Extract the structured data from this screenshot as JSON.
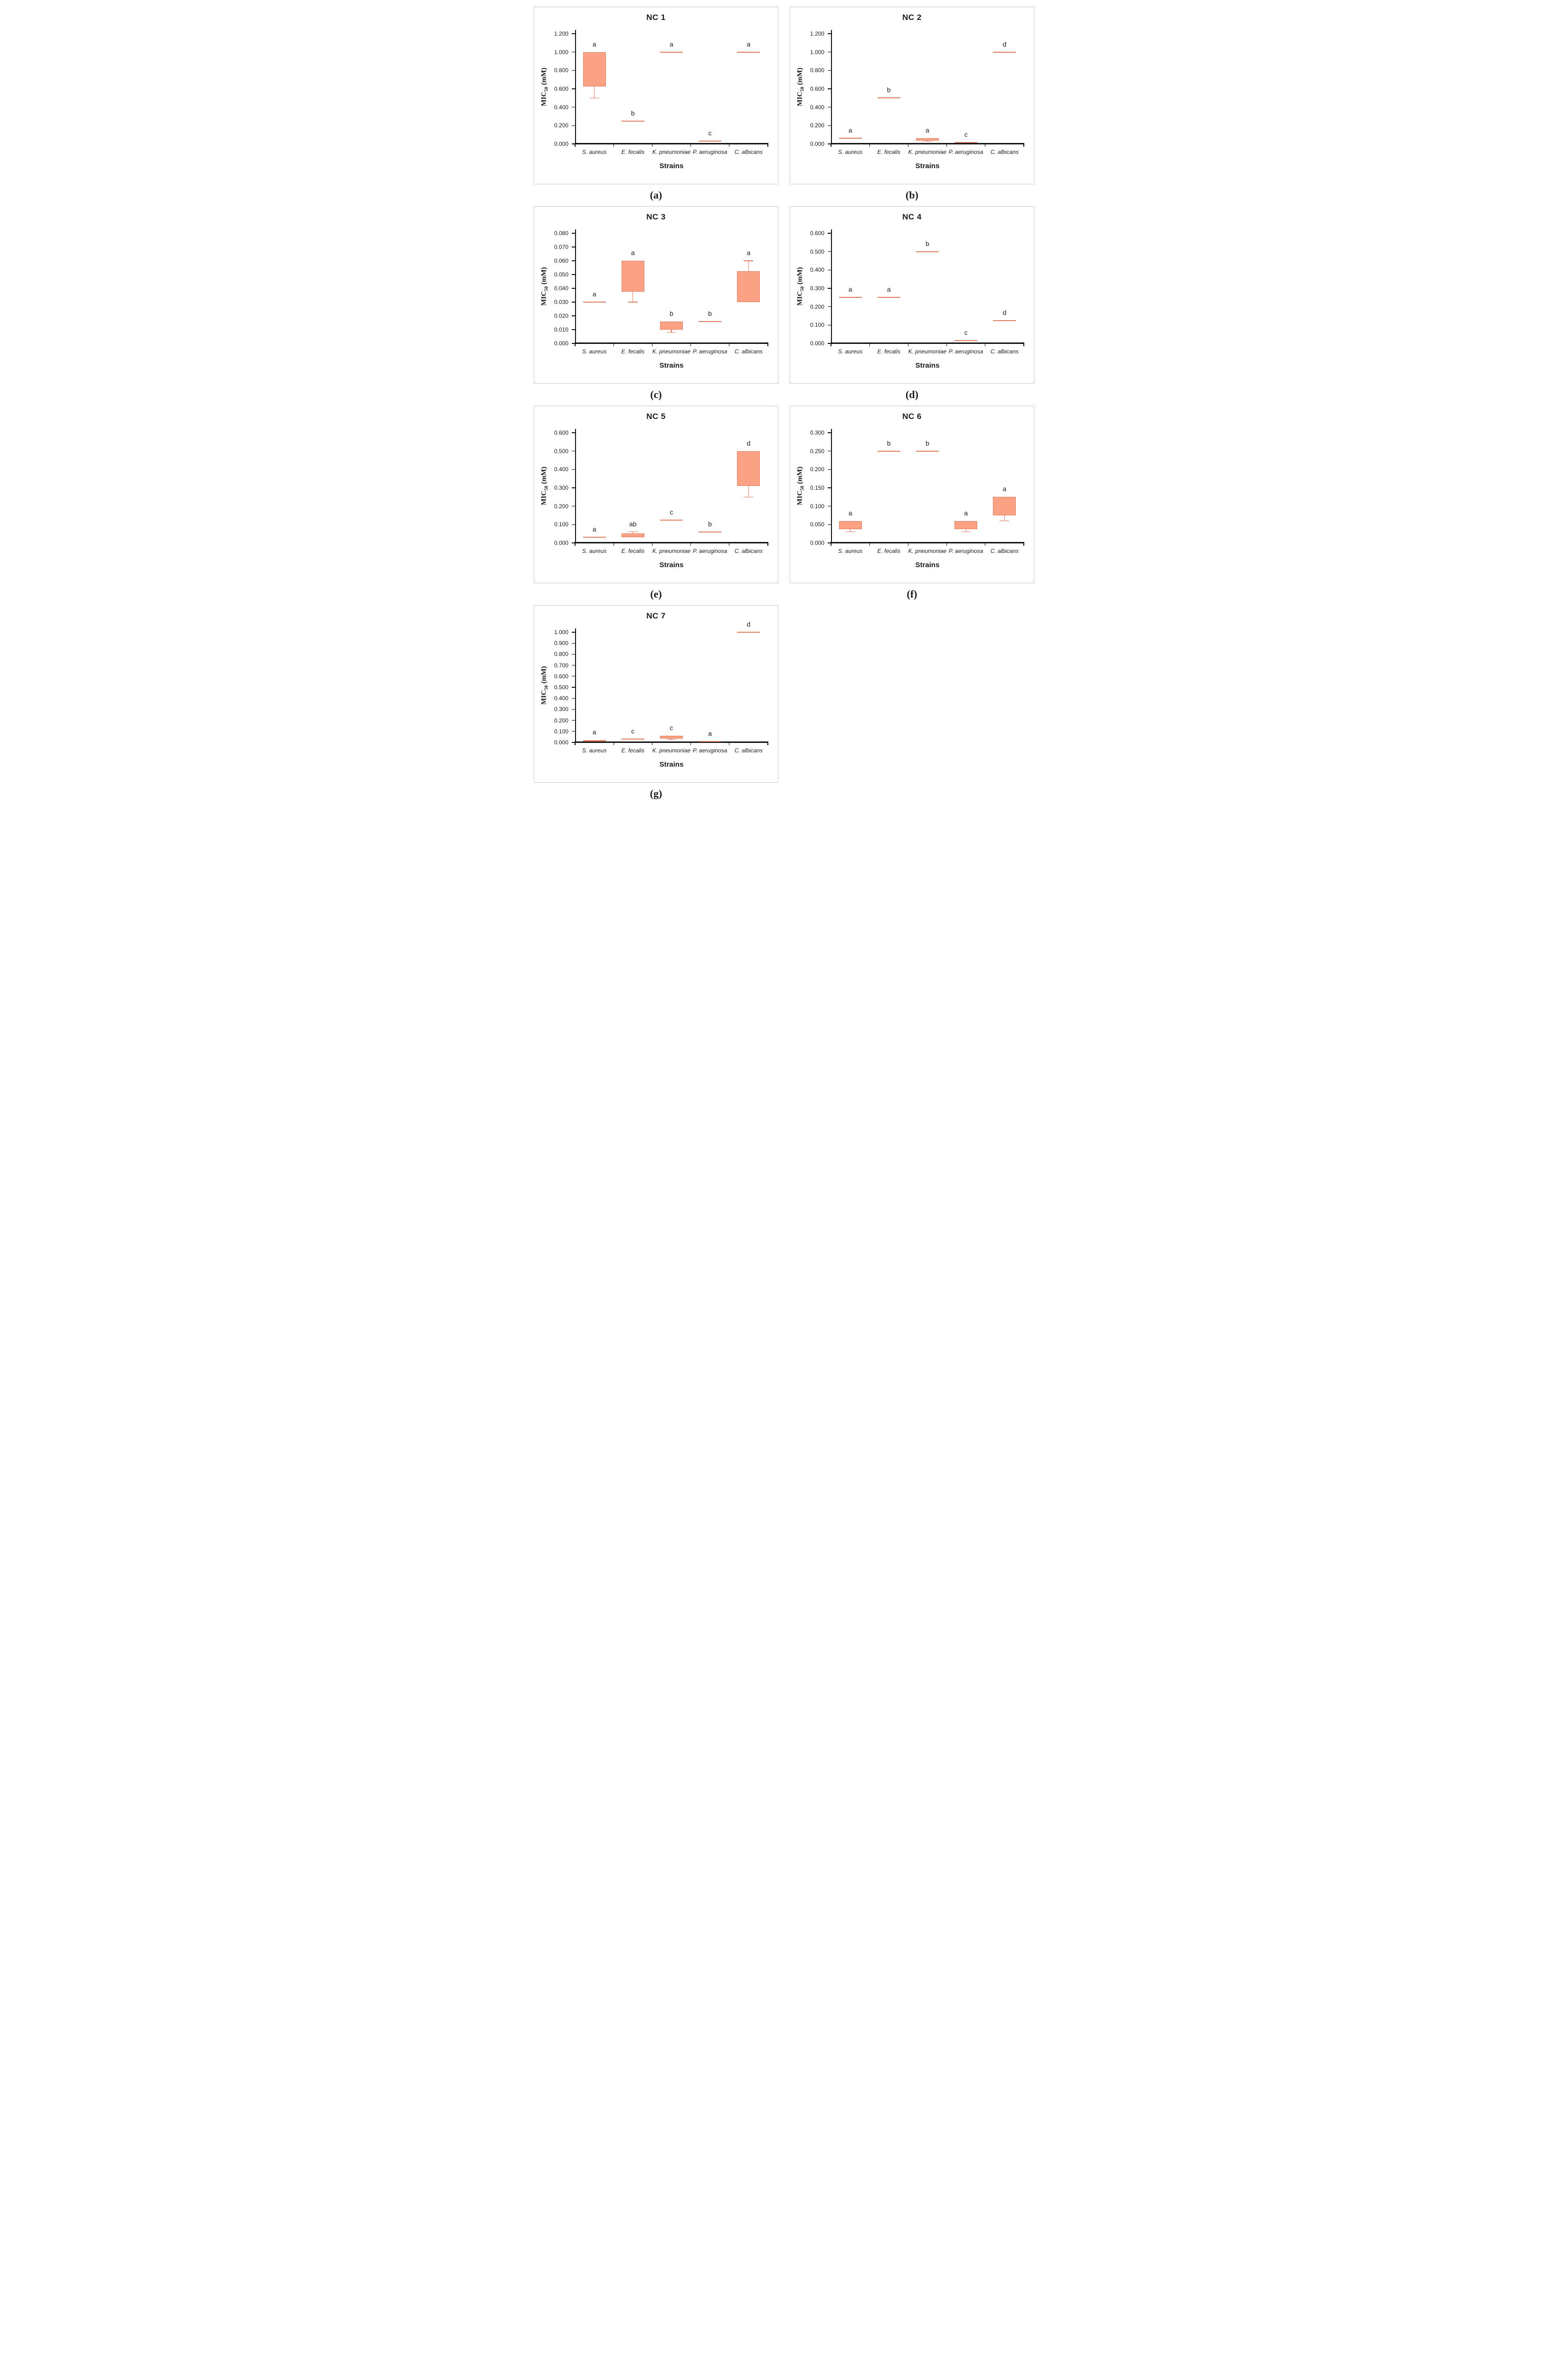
{
  "figure": {
    "background": "#ffffff",
    "panel_border": "#c9c9c9",
    "axis_color": "#111111",
    "box_fill": "#FBA285",
    "box_stroke": "#E07C5F",
    "ylabel": {
      "pre": "MIC",
      "sub": "50",
      "post": " (mM)"
    },
    "xlabel": "Strains",
    "categories": [
      "S. aureus",
      "E. fecalis",
      "K. pneumoniae",
      "P. aeruginosa",
      "C. albicans"
    ]
  },
  "chart_data": [
    {
      "type": "box",
      "title": "NC 1",
      "caption": "(a)",
      "ylabel": "MIC50 (mM)",
      "xlabel": "Strains",
      "ylim": [
        0,
        1.2
      ],
      "ytick_step": 0.2,
      "ytick_decimals": 3,
      "categories": [
        "S. aureus",
        "E. fecalis",
        "K. pneumoniae",
        "P. aeruginosa",
        "C. albicans"
      ],
      "series": [
        {
          "category": "S. aureus",
          "letter": "a",
          "q1": 0.625,
          "q3": 1.0,
          "whisker_low": 0.5
        },
        {
          "category": "E. fecalis",
          "letter": "b",
          "value": 0.25
        },
        {
          "category": "K. pneumoniae",
          "letter": "a",
          "value": 1.0
        },
        {
          "category": "P. aeruginosa",
          "letter": "c",
          "value": 0.031
        },
        {
          "category": "C. albicans",
          "letter": "a",
          "value": 1.0
        }
      ]
    },
    {
      "type": "box",
      "title": "NC 2",
      "caption": "(b)",
      "ylabel": "MIC50 (mM)",
      "xlabel": "Strains",
      "ylim": [
        0,
        1.2
      ],
      "ytick_step": 0.2,
      "ytick_decimals": 3,
      "categories": [
        "S. aureus",
        "E. fecalis",
        "K. pneumoniae",
        "P. aeruginosa",
        "C. albicans"
      ],
      "series": [
        {
          "category": "S. aureus",
          "letter": "a",
          "value": 0.06
        },
        {
          "category": "E. fecalis",
          "letter": "b",
          "value": 0.5
        },
        {
          "category": "K. pneumoniae",
          "letter": "a",
          "q1": 0.035,
          "q3": 0.06,
          "whisker_low": 0.028
        },
        {
          "category": "P. aeruginosa",
          "letter": "c",
          "value": 0.016
        },
        {
          "category": "C. albicans",
          "letter": "d",
          "value": 1.0
        }
      ]
    },
    {
      "type": "box",
      "title": "NC 3",
      "caption": "(c)",
      "ylabel": "MIC50 (mM)",
      "xlabel": "Strains",
      "ylim": [
        0,
        0.08
      ],
      "ytick_step": 0.01,
      "ytick_decimals": 3,
      "categories": [
        "S. aureus",
        "E. fecalis",
        "K. pneumoniae",
        "P. aeruginosa",
        "C. albicans"
      ],
      "series": [
        {
          "category": "S. aureus",
          "letter": "a",
          "value": 0.03
        },
        {
          "category": "E. fecalis",
          "letter": "a",
          "q1": 0.0375,
          "q3": 0.06,
          "whisker_low": 0.03
        },
        {
          "category": "K. pneumoniae",
          "letter": "b",
          "q1": 0.01,
          "q3": 0.016,
          "whisker_low": 0.008
        },
        {
          "category": "P. aeruginosa",
          "letter": "b",
          "value": 0.016
        },
        {
          "category": "C. albicans",
          "letter": "a",
          "q1": 0.03,
          "q3": 0.0525,
          "whisker_high": 0.06
        }
      ]
    },
    {
      "type": "box",
      "title": "NC 4",
      "caption": "(d)",
      "ylabel": "MIC50 (mM)",
      "xlabel": "Strains",
      "ylim": [
        0,
        0.6
      ],
      "ytick_step": 0.1,
      "ytick_decimals": 3,
      "categories": [
        "S. aureus",
        "E. fecalis",
        "K. pneumoniae",
        "P. aeruginosa",
        "C. albicans"
      ],
      "series": [
        {
          "category": "S. aureus",
          "letter": "a",
          "value": 0.25
        },
        {
          "category": "E. fecalis",
          "letter": "a",
          "value": 0.25
        },
        {
          "category": "K. pneumoniae",
          "letter": "b",
          "value": 0.5
        },
        {
          "category": "P. aeruginosa",
          "letter": "c",
          "value": 0.016
        },
        {
          "category": "C. albicans",
          "letter": "d",
          "value": 0.125
        }
      ]
    },
    {
      "type": "box",
      "title": "NC 5",
      "caption": "(e)",
      "ylabel": "MIC50 (mM)",
      "xlabel": "Strains",
      "ylim": [
        0,
        0.6
      ],
      "ytick_step": 0.1,
      "ytick_decimals": 3,
      "categories": [
        "S. aureus",
        "E. fecalis",
        "K. pneumoniae",
        "P. aeruginosa",
        "C. albicans"
      ],
      "series": [
        {
          "category": "S. aureus",
          "letter": "a",
          "value": 0.03
        },
        {
          "category": "E. fecalis",
          "letter": "ab",
          "q1": 0.03,
          "q3": 0.053,
          "whisker_high": 0.06
        },
        {
          "category": "K. pneumoniae",
          "letter": "c",
          "value": 0.125
        },
        {
          "category": "P. aeruginosa",
          "letter": "b",
          "value": 0.06
        },
        {
          "category": "C. albicans",
          "letter": "d",
          "q1": 0.31,
          "q3": 0.5,
          "whisker_low": 0.25
        }
      ]
    },
    {
      "type": "box",
      "title": "NC 6",
      "caption": "(f)",
      "ylabel": "MIC50 (mM)",
      "xlabel": "Strains",
      "ylim": [
        0,
        0.3
      ],
      "ytick_step": 0.05,
      "ytick_decimals": 3,
      "categories": [
        "S. aureus",
        "E. fecalis",
        "K. pneumoniae",
        "P. aeruginosa",
        "C. albicans"
      ],
      "series": [
        {
          "category": "S. aureus",
          "letter": "a",
          "q1": 0.0375,
          "q3": 0.06,
          "whisker_low": 0.03
        },
        {
          "category": "E. fecalis",
          "letter": "b",
          "value": 0.25
        },
        {
          "category": "K. pneumoniae",
          "letter": "b",
          "value": 0.25
        },
        {
          "category": "P. aeruginosa",
          "letter": "a",
          "q1": 0.0375,
          "q3": 0.06,
          "whisker_low": 0.03
        },
        {
          "category": "C. albicans",
          "letter": "a",
          "q1": 0.075,
          "q3": 0.125,
          "whisker_low": 0.06
        }
      ]
    },
    {
      "type": "box",
      "title": "NC 7",
      "caption": "(g)",
      "ylabel": "MIC50 (mM)",
      "xlabel": "Strains",
      "ylim": [
        0,
        1.0
      ],
      "ytick_step": 0.1,
      "ytick_decimals": 3,
      "categories": [
        "S. aureus",
        "E. fecalis",
        "K. pneumoniae",
        "P. aeruginosa",
        "C. albicans"
      ],
      "series": [
        {
          "category": "S. aureus",
          "letter": "a",
          "q1": 0.008,
          "q3": 0.02
        },
        {
          "category": "E. fecalis",
          "letter": "c",
          "value": 0.03
        },
        {
          "category": "K. pneumoniae",
          "letter": "c",
          "q1": 0.035,
          "q3": 0.06,
          "whisker_low": 0.028
        },
        {
          "category": "P. aeruginosa",
          "letter": "a",
          "value": 0.008
        },
        {
          "category": "C. albicans",
          "letter": "d",
          "value": 1.0
        }
      ]
    }
  ]
}
